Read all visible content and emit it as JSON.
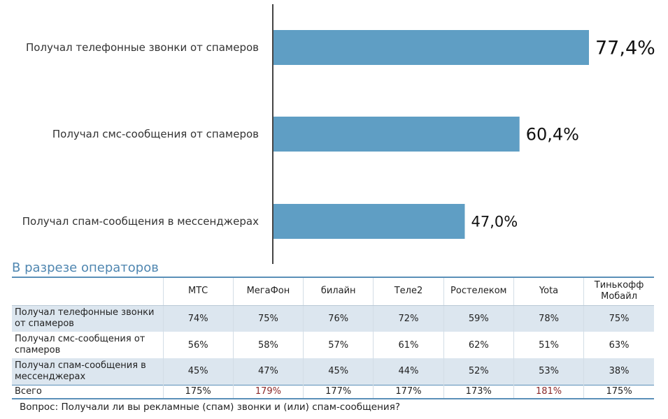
{
  "chart_data": {
    "type": "bar",
    "orientation": "horizontal",
    "categories": [
      "Получал телефонные звонки от спамеров",
      "Получал смс-сообщения от спамеров",
      "Получал спам-сообщения в мессенджерах"
    ],
    "values": [
      77.4,
      60.4,
      47.0
    ],
    "value_labels": [
      "77,4%",
      "60,4%",
      "47,0%"
    ],
    "xlim": [
      0,
      100
    ],
    "bar_color": "#5f9ec4",
    "axis_color": "#444444",
    "title": "",
    "xlabel": "",
    "ylabel": ""
  },
  "operators": {
    "title": "В разрезе операторов",
    "columns": [
      "МТС",
      "МегаФон",
      "билайн",
      "Теле2",
      "Ростелеком",
      "Yota",
      "Тинькофф Мобайл"
    ],
    "rows": [
      {
        "label": "Получал телефонные звонки от спамеров",
        "values": [
          "74%",
          "75%",
          "76%",
          "72%",
          "59%",
          "78%",
          "75%"
        ]
      },
      {
        "label": "Получал смс-сообщения от спамеров",
        "values": [
          "56%",
          "58%",
          "57%",
          "61%",
          "62%",
          "51%",
          "63%"
        ]
      },
      {
        "label": "Получал спам-сообщения в мессенджерах",
        "values": [
          "45%",
          "47%",
          "45%",
          "44%",
          "52%",
          "53%",
          "38%"
        ]
      },
      {
        "label": "Всего",
        "values": [
          "175%",
          "179%",
          "177%",
          "177%",
          "173%",
          "181%",
          "175%"
        ]
      }
    ],
    "highlight_color": "#8b2a2a"
  },
  "footnote": "Вопрос: Получали ли вы рекламные (спам) звонки и (или) спам-сообщения?"
}
